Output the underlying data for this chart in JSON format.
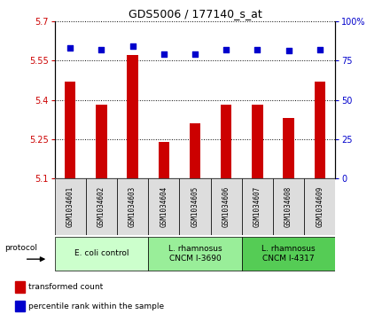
{
  "title": "GDS5006 / 177140_s_at",
  "samples": [
    "GSM1034601",
    "GSM1034602",
    "GSM1034603",
    "GSM1034604",
    "GSM1034605",
    "GSM1034606",
    "GSM1034607",
    "GSM1034608",
    "GSM1034609"
  ],
  "transformed_counts": [
    5.47,
    5.38,
    5.57,
    5.24,
    5.31,
    5.38,
    5.38,
    5.33,
    5.47
  ],
  "percentile_ranks": [
    83,
    82,
    84,
    79,
    79,
    82,
    82,
    81,
    82
  ],
  "ylim_left": [
    5.1,
    5.7
  ],
  "ylim_right": [
    0,
    100
  ],
  "yticks_left": [
    5.1,
    5.25,
    5.4,
    5.55,
    5.7
  ],
  "yticks_right": [
    0,
    25,
    50,
    75,
    100
  ],
  "ytick_labels_left": [
    "5.1",
    "5.25",
    "5.4",
    "5.55",
    "5.7"
  ],
  "ytick_labels_right": [
    "0",
    "25",
    "50",
    "75",
    "100%"
  ],
  "bar_color": "#CC0000",
  "dot_color": "#0000CC",
  "group_labels": [
    "E. coli control",
    "L. rhamnosus\nCNCM I-3690",
    "L. rhamnosus\nCNCM I-4317"
  ],
  "group_colors": [
    "#ccffcc",
    "#99ee99",
    "#55cc55"
  ],
  "group_starts": [
    0,
    3,
    6
  ],
  "group_ends": [
    2,
    5,
    8
  ],
  "protocol_label": "protocol",
  "bar_width": 0.35,
  "dot_size": 20,
  "left_tick_color": "#CC0000",
  "right_tick_color": "#0000CC",
  "sample_bg": "#dddddd",
  "fig_width": 4.4,
  "fig_height": 3.63,
  "dpi": 100
}
